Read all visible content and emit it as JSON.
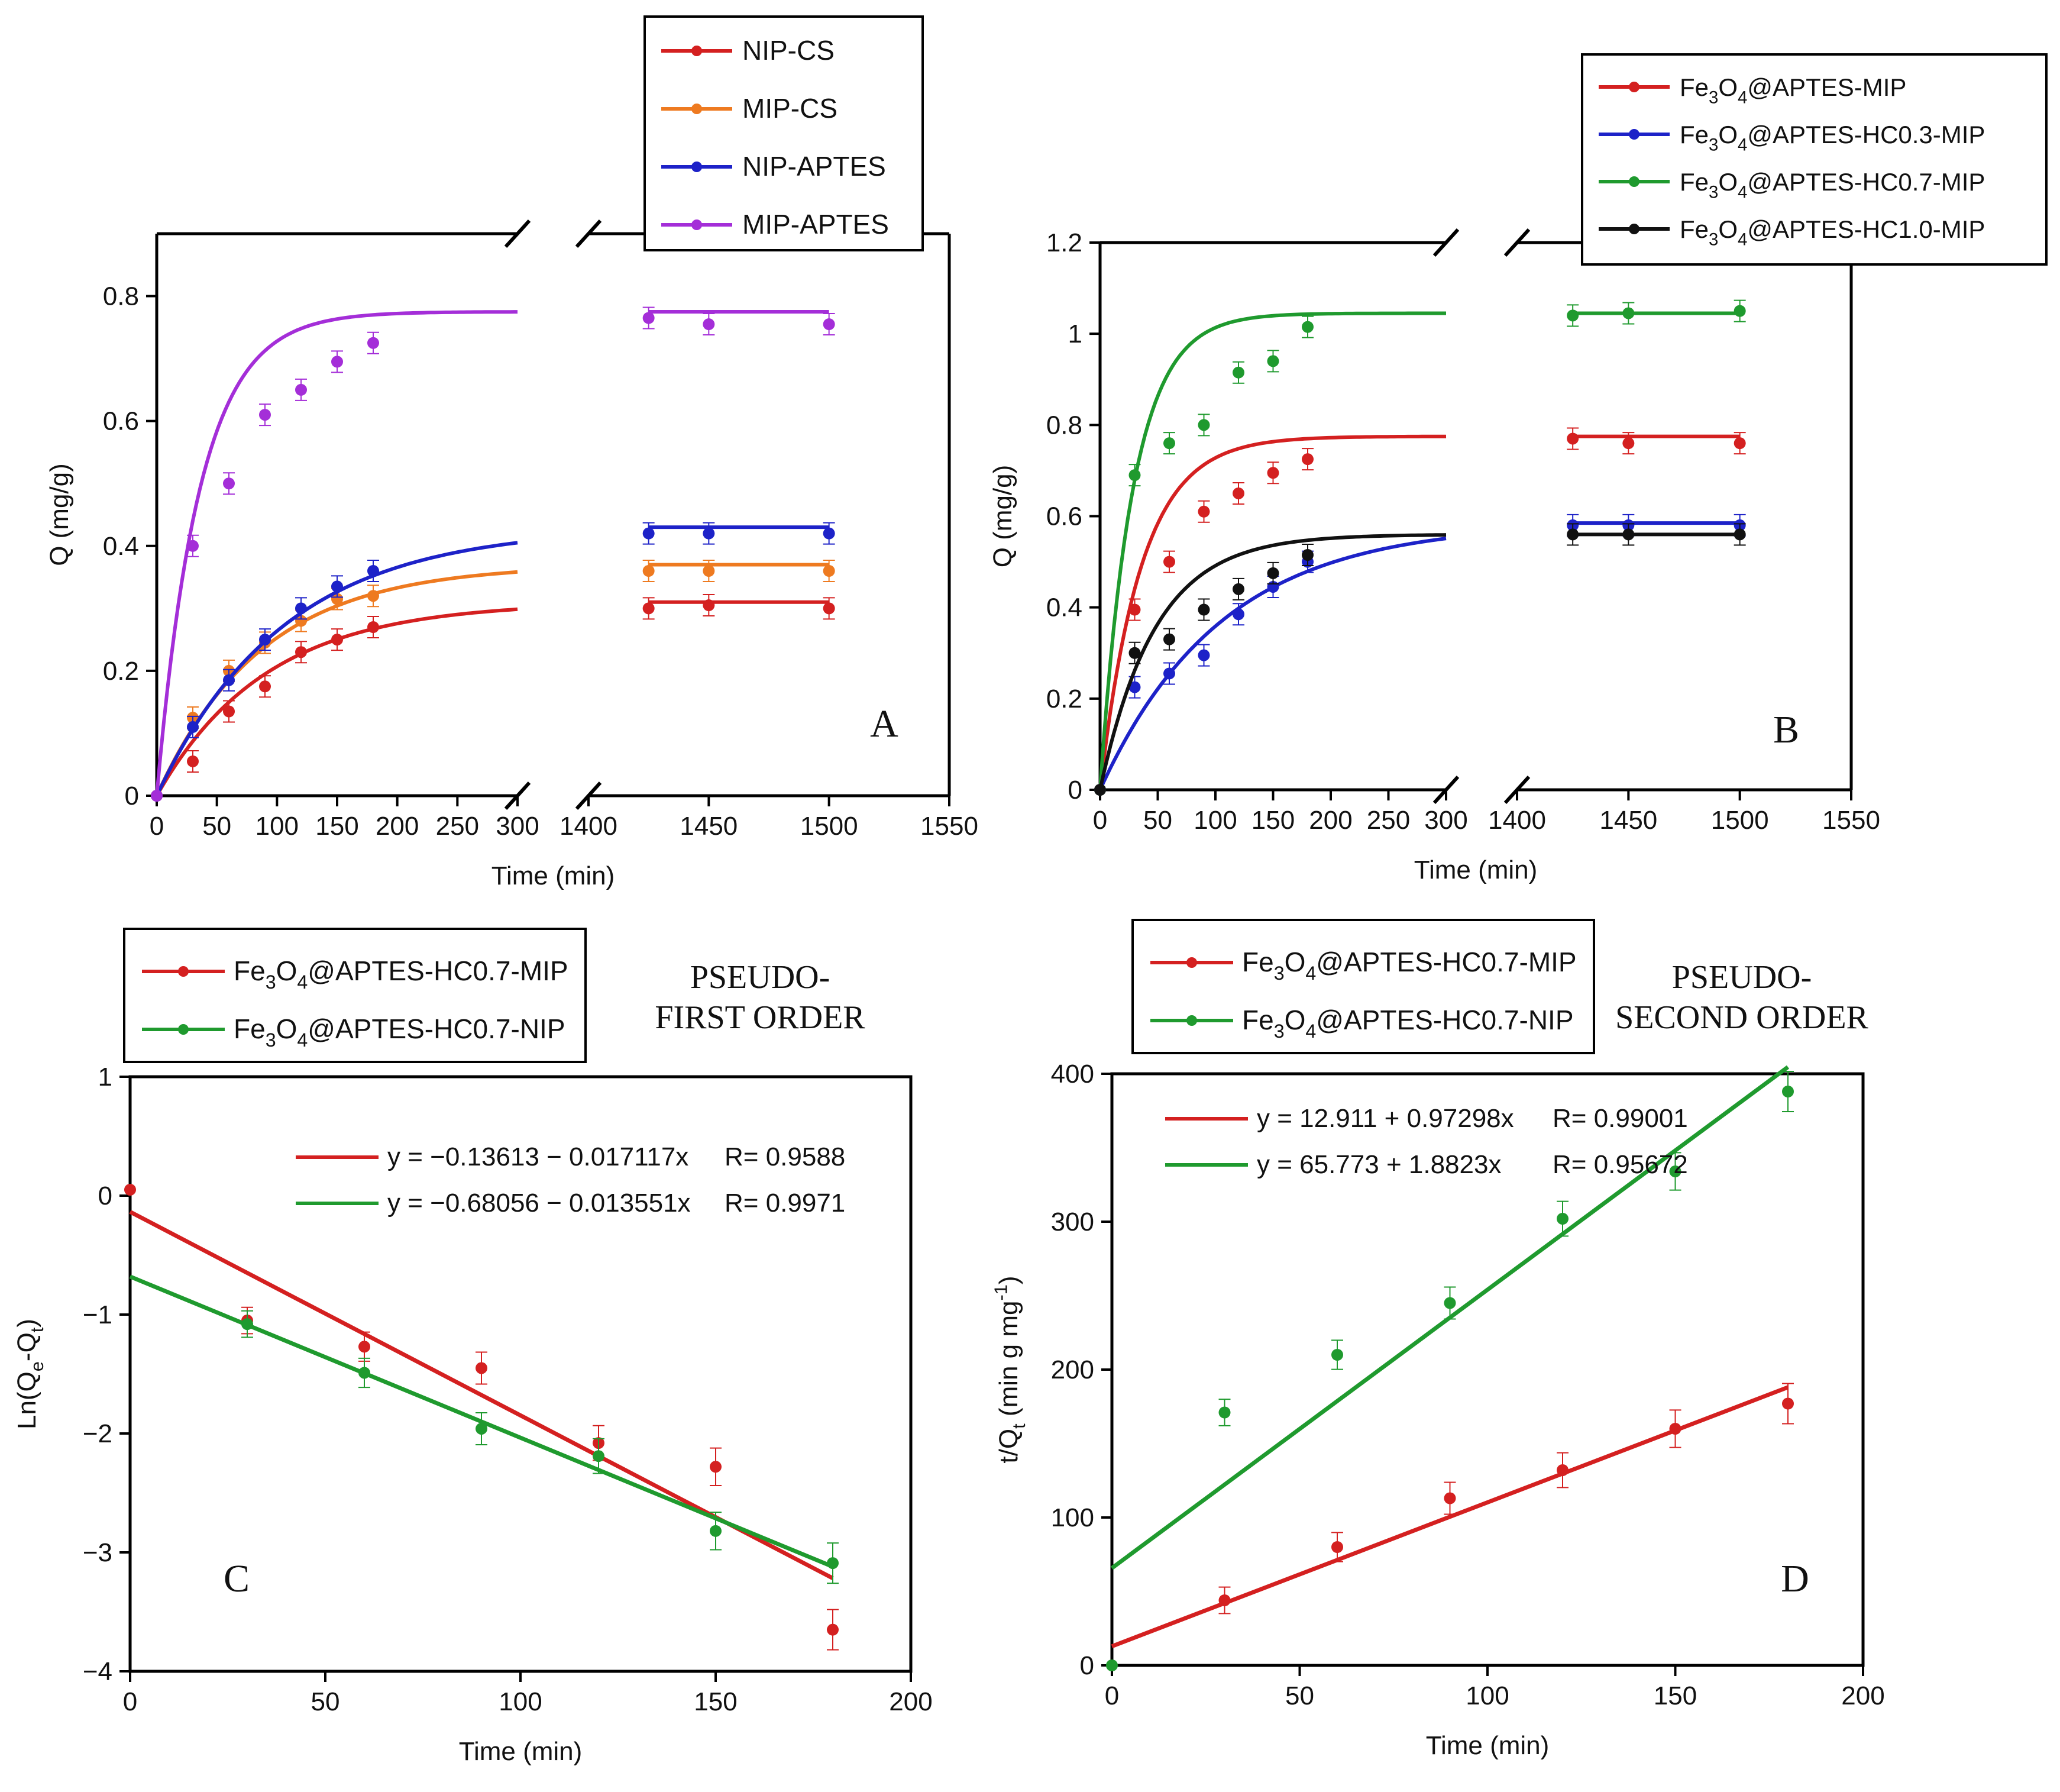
{
  "chart_data": [
    {
      "panel": "A",
      "type": "line",
      "xlabel": "Time (min)",
      "ylabel": "Q (mg/g)",
      "ylim": [
        0,
        0.9
      ],
      "yticks": [
        0,
        0.2,
        0.4,
        0.6,
        0.8
      ],
      "ytick_labels": [
        "0",
        "0.2",
        "0.4",
        "0.6",
        "0.8"
      ],
      "x_segments": [
        {
          "range": [
            0,
            300
          ],
          "ticks": [
            0,
            50,
            100,
            150,
            200,
            250,
            300
          ]
        },
        {
          "range": [
            1400,
            1550
          ],
          "ticks": [
            1400,
            1450,
            1500,
            1550
          ]
        }
      ],
      "broken_axis": true,
      "corner_label": "A",
      "legend": [
        "NIP-CS",
        "MIP-CS",
        "NIP-APTES",
        "MIP-APTES"
      ],
      "series": [
        {
          "name": "NIP-CS",
          "color": "#d42020",
          "qe": 0.31,
          "k": 0.011,
          "points": [
            [
              0,
              0
            ],
            [
              30,
              0.055
            ],
            [
              60,
              0.135
            ],
            [
              90,
              0.175
            ],
            [
              120,
              0.23
            ],
            [
              150,
              0.25
            ],
            [
              180,
              0.27
            ],
            [
              1425,
              0.3
            ],
            [
              1450,
              0.305
            ],
            [
              1500,
              0.3
            ]
          ]
        },
        {
          "name": "MIP-CS",
          "color": "#ee7a20",
          "qe": 0.37,
          "k": 0.0115,
          "points": [
            [
              0,
              0
            ],
            [
              30,
              0.125
            ],
            [
              60,
              0.2
            ],
            [
              90,
              0.245
            ],
            [
              120,
              0.28
            ],
            [
              150,
              0.315
            ],
            [
              180,
              0.32
            ],
            [
              1425,
              0.36
            ],
            [
              1450,
              0.36
            ],
            [
              1500,
              0.36
            ]
          ]
        },
        {
          "name": "NIP-APTES",
          "color": "#1d22c8",
          "qe": 0.43,
          "k": 0.0095,
          "points": [
            [
              0,
              0
            ],
            [
              30,
              0.11
            ],
            [
              60,
              0.185
            ],
            [
              90,
              0.25
            ],
            [
              120,
              0.3
            ],
            [
              150,
              0.335
            ],
            [
              180,
              0.36
            ],
            [
              1425,
              0.42
            ],
            [
              1450,
              0.42
            ],
            [
              1500,
              0.42
            ]
          ]
        },
        {
          "name": "MIP-APTES",
          "color": "#a42ed8",
          "qe": 0.775,
          "k": 0.028,
          "points": [
            [
              0,
              0
            ],
            [
              30,
              0.4
            ],
            [
              60,
              0.5
            ],
            [
              90,
              0.61
            ],
            [
              120,
              0.65
            ],
            [
              150,
              0.695
            ],
            [
              180,
              0.725
            ],
            [
              1425,
              0.765
            ],
            [
              1450,
              0.755
            ],
            [
              1500,
              0.755
            ]
          ]
        }
      ]
    },
    {
      "panel": "B",
      "type": "line",
      "xlabel": "Time (min)",
      "ylabel": "Q (mg/g)",
      "ylim": [
        0,
        1.2
      ],
      "yticks": [
        0,
        0.2,
        0.4,
        0.6,
        0.8,
        1,
        1.2
      ],
      "ytick_labels": [
        "0",
        "0.2",
        "0.4",
        "0.6",
        "0.8",
        "1",
        "1.2"
      ],
      "x_segments": [
        {
          "range": [
            0,
            300
          ],
          "ticks": [
            0,
            50,
            100,
            150,
            200,
            250,
            300
          ]
        },
        {
          "range": [
            1400,
            1550
          ],
          "ticks": [
            1400,
            1450,
            1500,
            1550
          ]
        }
      ],
      "broken_axis": true,
      "corner_label": "B",
      "legend": [
        "Fe3O4@APTES-MIP",
        "Fe3O4@APTES-HC0.3-MIP",
        "Fe3O4@APTES-HC0.7-MIP",
        "Fe3O4@APTES-HC1.0-MIP"
      ],
      "series": [
        {
          "name": "Fe3O4@APTES-MIP",
          "color": "#d42020",
          "qe": 0.775,
          "k": 0.028,
          "points": [
            [
              0,
              0
            ],
            [
              30,
              0.395
            ],
            [
              60,
              0.5
            ],
            [
              90,
              0.61
            ],
            [
              120,
              0.65
            ],
            [
              150,
              0.695
            ],
            [
              180,
              0.725
            ],
            [
              1425,
              0.77
            ],
            [
              1450,
              0.76
            ],
            [
              1500,
              0.76
            ]
          ]
        },
        {
          "name": "Fe3O4@APTES-HC0.3-MIP",
          "color": "#1d22c8",
          "qe": 0.585,
          "k": 0.0095,
          "points": [
            [
              0,
              0
            ],
            [
              30,
              0.225
            ],
            [
              60,
              0.255
            ],
            [
              90,
              0.295
            ],
            [
              120,
              0.385
            ],
            [
              150,
              0.445
            ],
            [
              180,
              0.5
            ],
            [
              1425,
              0.58
            ],
            [
              1450,
              0.58
            ],
            [
              1500,
              0.58
            ]
          ]
        },
        {
          "name": "Fe3O4@APTES-HC0.7-MIP",
          "color": "#1f9a2e",
          "qe": 1.045,
          "k": 0.035,
          "points": [
            [
              0,
              0
            ],
            [
              30,
              0.69
            ],
            [
              60,
              0.76
            ],
            [
              90,
              0.8
            ],
            [
              120,
              0.915
            ],
            [
              150,
              0.94
            ],
            [
              180,
              1.015
            ],
            [
              1425,
              1.04
            ],
            [
              1450,
              1.045
            ],
            [
              1500,
              1.05
            ]
          ]
        },
        {
          "name": "Fe3O4@APTES-HC1.0-MIP",
          "color": "#111111",
          "qe": 0.56,
          "k": 0.021,
          "points": [
            [
              0,
              0
            ],
            [
              30,
              0.3
            ],
            [
              60,
              0.33
            ],
            [
              90,
              0.395
            ],
            [
              120,
              0.44
            ],
            [
              150,
              0.475
            ],
            [
              180,
              0.515
            ],
            [
              1425,
              0.56
            ],
            [
              1450,
              0.56
            ],
            [
              1500,
              0.56
            ]
          ]
        }
      ]
    },
    {
      "panel": "C",
      "type": "scatter",
      "title": "PSEUDO-FIRST ORDER",
      "title_lines": [
        "PSEUDO-",
        "FIRST ORDER"
      ],
      "xlabel": "Time (min)",
      "ylabel": "Ln(Qe-Qt)",
      "xlim": [
        0,
        200
      ],
      "ylim": [
        -4,
        1
      ],
      "xticks": [
        0,
        50,
        100,
        150,
        200
      ],
      "yticks": [
        -4,
        -3,
        -2,
        -1,
        0,
        1
      ],
      "ytick_labels": [
        "−4",
        "−3",
        "−2",
        "−1",
        "0",
        "1"
      ],
      "corner_label": "C",
      "legend": [
        "Fe3O4@APTES-HC0.7-MIP",
        "Fe3O4@APTES-HC0.7-NIP"
      ],
      "series": [
        {
          "name": "Fe3O4@APTES-HC0.7-MIP",
          "color": "#d42020",
          "points": [
            [
              0,
              0.05
            ],
            [
              30,
              -1.05
            ],
            [
              60,
              -1.27
            ],
            [
              90,
              -1.45
            ],
            [
              120,
              -2.08
            ],
            [
              150,
              -2.28
            ],
            [
              180,
              -3.65
            ]
          ],
          "fit": {
            "intercept": -0.13613,
            "slope": -0.017117,
            "x_range": [
              0,
              180
            ]
          },
          "equation": "y = −0.13613 − 0.017117x",
          "r": "R= 0.9588"
        },
        {
          "name": "Fe3O4@APTES-HC0.7-NIP",
          "color": "#1f9a2e",
          "points": [
            [
              30,
              -1.08
            ],
            [
              60,
              -1.49
            ],
            [
              90,
              -1.96
            ],
            [
              120,
              -2.19
            ],
            [
              150,
              -2.82
            ],
            [
              180,
              -3.09
            ]
          ],
          "fit": {
            "intercept": -0.68056,
            "slope": -0.013551,
            "x_range": [
              0,
              180
            ]
          },
          "equation": "y = −0.68056 − 0.013551x",
          "r": "R= 0.9971"
        }
      ]
    },
    {
      "panel": "D",
      "type": "scatter",
      "title": "PSEUDO-SECOND ORDER",
      "title_lines": [
        "PSEUDO-",
        "SECOND ORDER"
      ],
      "xlabel": "Time (min)",
      "ylabel": "t/Qt (min g mg-1)",
      "xlim": [
        0,
        200
      ],
      "ylim": [
        0,
        400
      ],
      "xticks": [
        0,
        50,
        100,
        150,
        200
      ],
      "yticks": [
        0,
        100,
        200,
        300,
        400
      ],
      "ytick_labels": [
        "0",
        "100",
        "200",
        "300",
        "400"
      ],
      "corner_label": "D",
      "legend": [
        "Fe3O4@APTES-HC0.7-MIP",
        "Fe3O4@APTES-HC0.7-NIP"
      ],
      "series": [
        {
          "name": "Fe3O4@APTES-HC0.7-MIP",
          "color": "#d42020",
          "points": [
            [
              30,
              44
            ],
            [
              60,
              80
            ],
            [
              90,
              113
            ],
            [
              120,
              132
            ],
            [
              150,
              160
            ],
            [
              180,
              177
            ]
          ],
          "fit": {
            "intercept": 12.911,
            "slope": 0.97298,
            "x_range": [
              0,
              180
            ]
          },
          "equation": "y = 12.911 + 0.97298x",
          "r": "R= 0.99001"
        },
        {
          "name": "Fe3O4@APTES-HC0.7-NIP",
          "color": "#1f9a2e",
          "points": [
            [
              0,
              0
            ],
            [
              30,
              171
            ],
            [
              60,
              210
            ],
            [
              90,
              245
            ],
            [
              120,
              302
            ],
            [
              150,
              334
            ],
            [
              180,
              388
            ]
          ],
          "fit": {
            "intercept": 65.773,
            "slope": 1.8823,
            "x_range": [
              0,
              180
            ]
          },
          "equation": "y = 65.773 + 1.8823x",
          "r": "R= 0.95672"
        }
      ]
    }
  ]
}
